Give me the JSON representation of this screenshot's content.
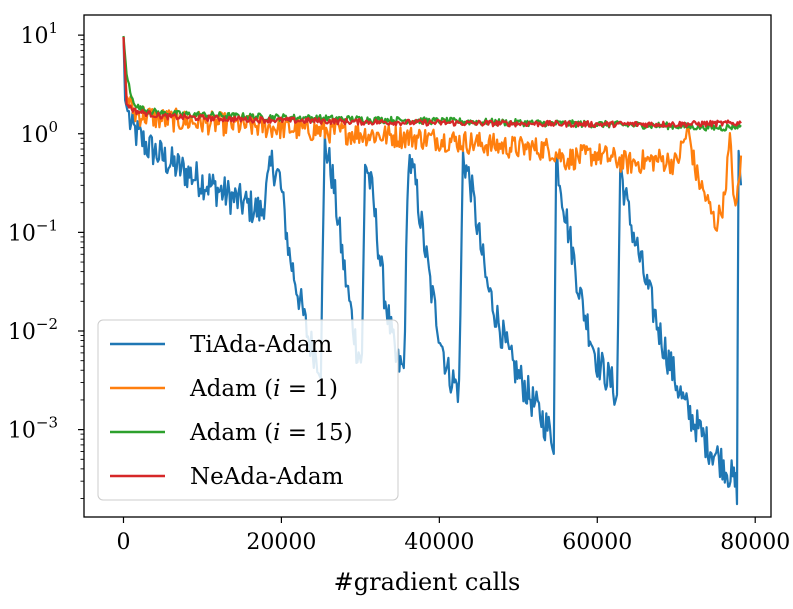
{
  "chart_data": {
    "type": "line",
    "title": "",
    "xlabel": "#gradient calls",
    "ylabel": "",
    "yscale": "log",
    "xlim": [
      -5000,
      82000
    ],
    "ylim": [
      0.00013,
      16
    ],
    "grid": false,
    "legend_position": "lower-left",
    "x_ticks": [
      {
        "value": 0,
        "label": "0"
      },
      {
        "value": 20000,
        "label": "20000"
      },
      {
        "value": 40000,
        "label": "40000"
      },
      {
        "value": 60000,
        "label": "60000"
      },
      {
        "value": 80000,
        "label": "80000"
      }
    ],
    "y_ticks": [
      {
        "value": 10,
        "base": "10",
        "exp": "1"
      },
      {
        "value": 1,
        "base": "10",
        "exp": "0"
      },
      {
        "value": 0.1,
        "base": "10",
        "exp": "−1"
      },
      {
        "value": 0.01,
        "base": "10",
        "exp": "−2"
      },
      {
        "value": 0.001,
        "base": "10",
        "exp": "−3"
      }
    ],
    "series": [
      {
        "name": "TiAda-Adam",
        "legend_parts": [
          {
            "t": "TiAda-Adam",
            "i": false
          }
        ],
        "color": "#1f77b4",
        "points": [
          [
            0,
            9.5
          ],
          [
            200,
            2.2
          ],
          [
            1000,
            1.15
          ],
          [
            3000,
            0.75
          ],
          [
            6000,
            0.5
          ],
          [
            10000,
            0.33
          ],
          [
            14000,
            0.22
          ],
          [
            17500,
            0.16
          ],
          [
            18800,
            0.5
          ],
          [
            19800,
            0.35
          ],
          [
            21000,
            0.06
          ],
          [
            22500,
            0.018
          ],
          [
            23500,
            0.008
          ],
          [
            25000,
            0.0045
          ],
          [
            25500,
            0.82
          ],
          [
            26500,
            0.35
          ],
          [
            28000,
            0.04
          ],
          [
            29500,
            0.007
          ],
          [
            30200,
            0.005
          ],
          [
            30600,
            0.55
          ],
          [
            31500,
            0.25
          ],
          [
            33000,
            0.025
          ],
          [
            34500,
            0.005
          ],
          [
            35500,
            0.004
          ],
          [
            36100,
            0.6
          ],
          [
            37000,
            0.3
          ],
          [
            39000,
            0.025
          ],
          [
            41000,
            0.004
          ],
          [
            42500,
            0.0025
          ],
          [
            43000,
            0.6
          ],
          [
            44000,
            0.3
          ],
          [
            46000,
            0.03
          ],
          [
            49000,
            0.005
          ],
          [
            52000,
            0.0018
          ],
          [
            54000,
            0.00095
          ],
          [
            54500,
            0.0008
          ],
          [
            54800,
            0.6
          ],
          [
            56000,
            0.15
          ],
          [
            58000,
            0.02
          ],
          [
            60000,
            0.005
          ],
          [
            62000,
            0.0028
          ],
          [
            62500,
            0.002
          ],
          [
            62900,
            0.45
          ],
          [
            64000,
            0.15
          ],
          [
            66000,
            0.035
          ],
          [
            68000,
            0.009
          ],
          [
            71000,
            0.0018
          ],
          [
            74000,
            0.0007
          ],
          [
            76000,
            0.00045
          ],
          [
            77300,
            0.0003
          ],
          [
            77700,
            0.00025
          ],
          [
            77900,
            0.7
          ],
          [
            78200,
            0.3
          ]
        ]
      },
      {
        "name": "Adam (i = 1)",
        "legend_parts": [
          {
            "t": "Adam (",
            "i": false
          },
          {
            "t": "i",
            "i": true
          },
          {
            "t": " = 1)",
            "i": false
          }
        ],
        "color": "#ff7f0e",
        "points": [
          [
            0,
            9.6
          ],
          [
            400,
            2.4
          ],
          [
            1500,
            1.6
          ],
          [
            5000,
            1.4
          ],
          [
            10000,
            1.3
          ],
          [
            20000,
            1.15
          ],
          [
            30000,
            1.0
          ],
          [
            40000,
            0.88
          ],
          [
            50000,
            0.72
          ],
          [
            54000,
            0.7
          ],
          [
            56000,
            0.55
          ],
          [
            60000,
            0.62
          ],
          [
            64000,
            0.5
          ],
          [
            68000,
            0.55
          ],
          [
            70000,
            0.5
          ],
          [
            71500,
            1.1
          ],
          [
            72500,
            0.4
          ],
          [
            74000,
            0.2
          ],
          [
            75000,
            0.12
          ],
          [
            76000,
            0.2
          ],
          [
            76800,
            0.85
          ],
          [
            77500,
            0.15
          ],
          [
            78200,
            0.6
          ]
        ]
      },
      {
        "name": "Adam (i = 15)",
        "legend_parts": [
          {
            "t": "Adam (",
            "i": false
          },
          {
            "t": "i",
            "i": true
          },
          {
            "t": " = 15)",
            "i": false
          }
        ],
        "color": "#2ca02c",
        "points": [
          [
            0,
            9.8
          ],
          [
            400,
            4.0
          ],
          [
            1000,
            2.3
          ],
          [
            2000,
            1.8
          ],
          [
            5000,
            1.6
          ],
          [
            15000,
            1.5
          ],
          [
            30000,
            1.4
          ],
          [
            45000,
            1.32
          ],
          [
            60000,
            1.25
          ],
          [
            70000,
            1.2
          ],
          [
            76000,
            1.15
          ],
          [
            78200,
            1.22
          ]
        ]
      },
      {
        "name": "NeAda-Adam",
        "legend_parts": [
          {
            "t": "NeAda-Adam",
            "i": false
          }
        ],
        "color": "#d62728",
        "points": [
          [
            0,
            9.6
          ],
          [
            400,
            2.0
          ],
          [
            1500,
            1.7
          ],
          [
            5000,
            1.5
          ],
          [
            15000,
            1.4
          ],
          [
            30000,
            1.32
          ],
          [
            45000,
            1.28
          ],
          [
            60000,
            1.25
          ],
          [
            70000,
            1.25
          ],
          [
            78200,
            1.28
          ]
        ]
      }
    ]
  }
}
